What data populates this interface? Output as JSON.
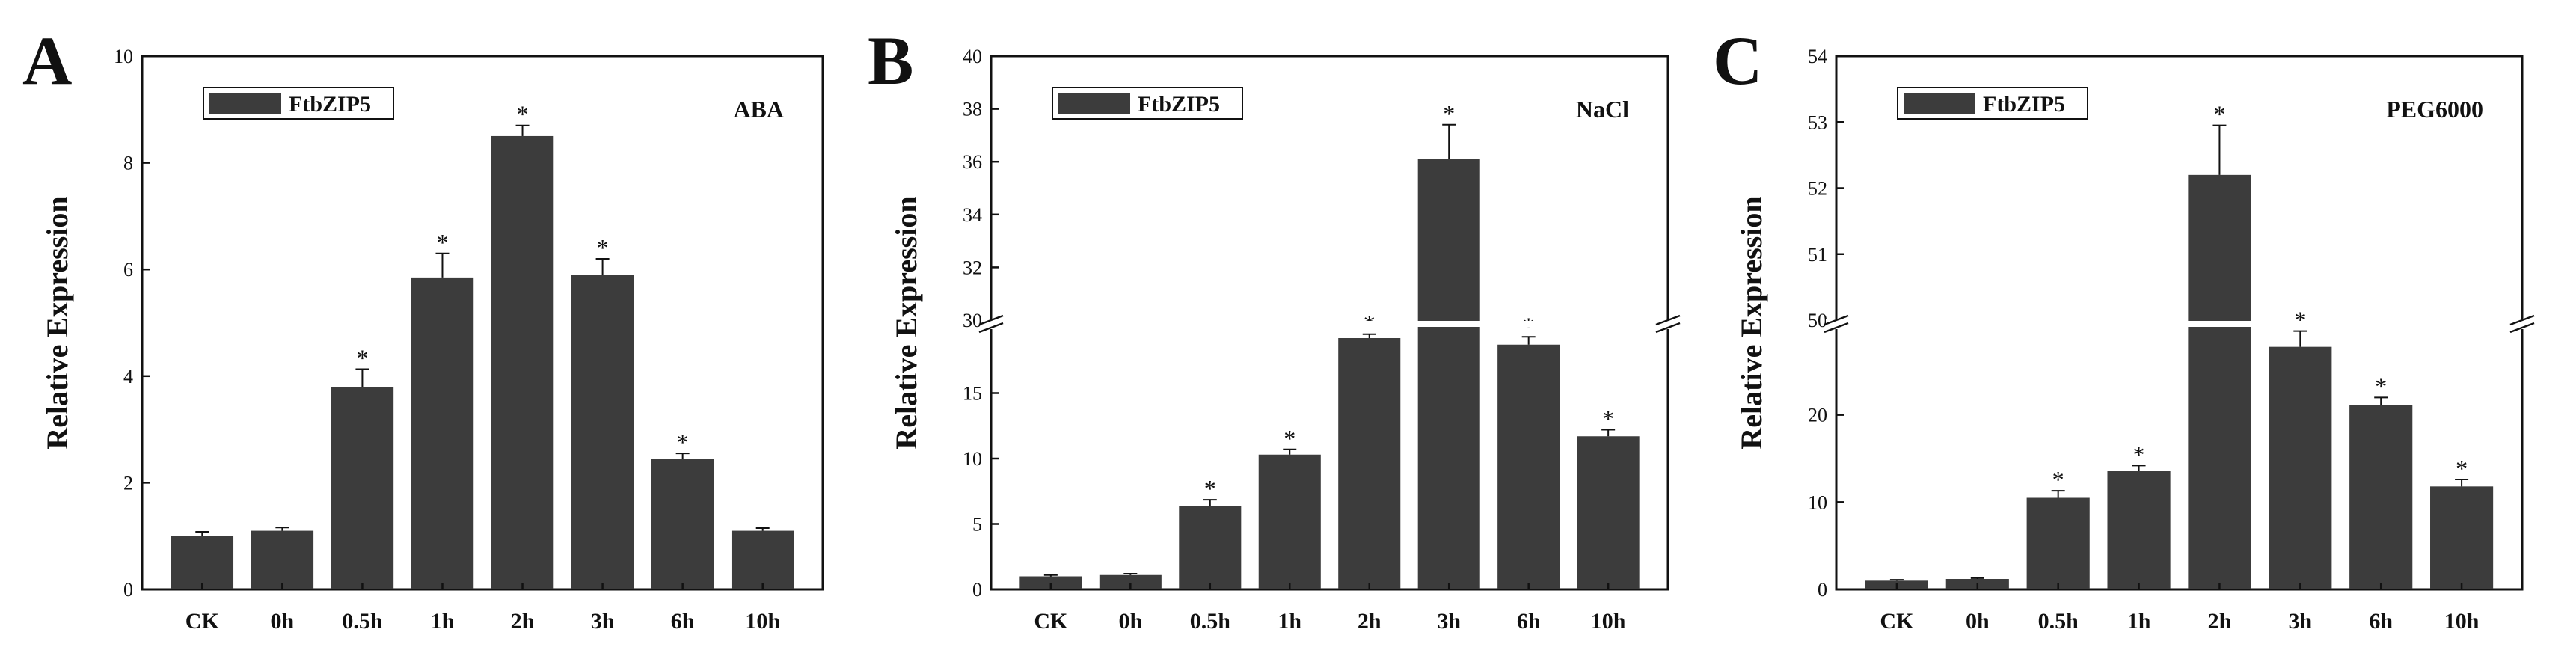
{
  "chart_data": [
    {
      "type": "bar",
      "panel": "A",
      "condition": "ABA",
      "legend": [
        "FtbZIP5"
      ],
      "ylabel": "Relative Expression",
      "categories": [
        "CK",
        "0h",
        "0.5h",
        "1h",
        "2h",
        "3h",
        "6h",
        "10h"
      ],
      "series": [
        {
          "name": "FtbZIP5",
          "values": [
            1.0,
            1.1,
            3.8,
            5.85,
            8.5,
            5.9,
            2.45,
            1.1
          ],
          "errors": [
            0.08,
            0.06,
            0.33,
            0.45,
            0.2,
            0.3,
            0.1,
            0.05
          ]
        }
      ],
      "significant": [
        false,
        false,
        true,
        true,
        true,
        true,
        true,
        false
      ],
      "annotation": "*",
      "ylim": [
        0,
        10
      ],
      "yticks": [
        0,
        2,
        4,
        6,
        8,
        10
      ],
      "broken_axis": false
    },
    {
      "type": "bar",
      "panel": "B",
      "condition": "NaCl",
      "legend": [
        "FtbZIP5"
      ],
      "ylabel": "Relative Expression",
      "categories": [
        "CK",
        "0h",
        "0.5h",
        "1h",
        "2h",
        "3h",
        "6h",
        "10h"
      ],
      "series": [
        {
          "name": "FtbZIP5",
          "values": [
            1.0,
            1.1,
            6.4,
            10.3,
            19.2,
            36.1,
            18.7,
            11.7
          ],
          "errors": [
            0.1,
            0.1,
            0.45,
            0.4,
            0.3,
            1.3,
            0.6,
            0.5
          ]
        }
      ],
      "significant": [
        false,
        false,
        true,
        true,
        true,
        true,
        true,
        true
      ],
      "annotation": "*",
      "broken_axis": true,
      "lower_ylim": [
        0,
        20
      ],
      "lower_yticks": [
        0,
        5,
        10,
        15
      ],
      "upper_ylim": [
        30,
        40
      ],
      "upper_yticks": [
        30,
        32,
        34,
        36,
        38,
        40
      ]
    },
    {
      "type": "bar",
      "panel": "C",
      "condition": "PEG6000",
      "legend": [
        "FtbZIP5"
      ],
      "ylabel": "Relative Expression",
      "categories": [
        "CK",
        "0h",
        "0.5h",
        "1h",
        "2h",
        "3h",
        "6h",
        "10h"
      ],
      "series": [
        {
          "name": "FtbZIP5",
          "values": [
            1.0,
            1.2,
            10.5,
            13.6,
            52.2,
            27.8,
            21.1,
            11.8
          ],
          "errors": [
            0.1,
            0.1,
            0.8,
            0.6,
            0.75,
            1.8,
            0.9,
            0.8
          ]
        }
      ],
      "significant": [
        false,
        false,
        true,
        true,
        true,
        true,
        true,
        true
      ],
      "annotation": "*",
      "broken_axis": true,
      "lower_ylim": [
        0,
        30
      ],
      "lower_yticks": [
        0,
        10,
        20
      ],
      "upper_ylim": [
        50,
        54
      ],
      "upper_yticks": [
        50,
        51,
        52,
        53,
        54
      ]
    }
  ],
  "colors": {
    "bar": "#3c3c3c",
    "axis": "#111111",
    "background": "#ffffff"
  }
}
